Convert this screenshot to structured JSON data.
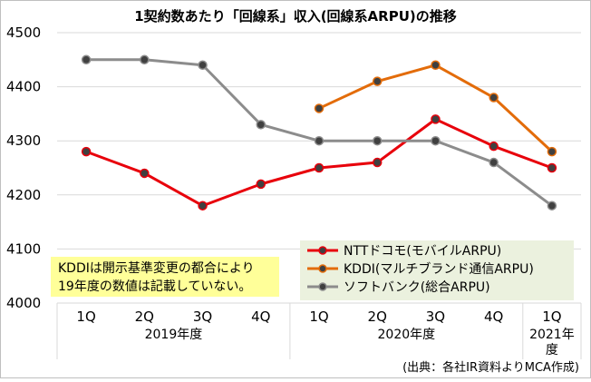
{
  "chart_data": {
    "type": "line",
    "title": "1契約数あたり「回線系」収入(回線系ARPU)の推移",
    "categories": [
      "1Q",
      "2Q",
      "3Q",
      "4Q",
      "1Q",
      "2Q",
      "3Q",
      "4Q",
      "1Q"
    ],
    "year_groups": [
      {
        "label": "2019年度",
        "start": 0,
        "end": 3
      },
      {
        "label": "2020年度",
        "start": 4,
        "end": 7
      },
      {
        "label_lines": [
          "2021年",
          "度"
        ],
        "start": 8,
        "end": 8
      }
    ],
    "ylim": [
      4000,
      4500
    ],
    "yticks": [
      4000,
      4100,
      4200,
      4300,
      4400,
      4500
    ],
    "grid": true,
    "series": [
      {
        "name": "NTTドコモ(モバイルARPU)",
        "color": "#e8000b",
        "values": [
          4280,
          4240,
          4180,
          4220,
          4250,
          4260,
          4340,
          4290,
          4250
        ]
      },
      {
        "name": "KDDI(マルチブランド通信ARPU)",
        "color": "#e36c0a",
        "values": [
          null,
          null,
          null,
          null,
          4360,
          4410,
          4440,
          4380,
          4280
        ]
      },
      {
        "name": "ソフトバンク(総合ARPU)",
        "color": "#8c8c8c",
        "values": [
          4450,
          4450,
          4440,
          4330,
          4300,
          4300,
          4300,
          4260,
          4180
        ]
      }
    ],
    "legend_position": "bottom-right",
    "note_lines": [
      "KDDIは開示基準変更の都合により",
      "19年度の数値は記載していない。"
    ],
    "source": "(出典：各社IR資料よりMCA作成)"
  },
  "colors": {
    "grid": "#d9d9d9",
    "legend_bg": "#ebf1de",
    "note_bg": "#ffff99",
    "axis": "#000000"
  }
}
